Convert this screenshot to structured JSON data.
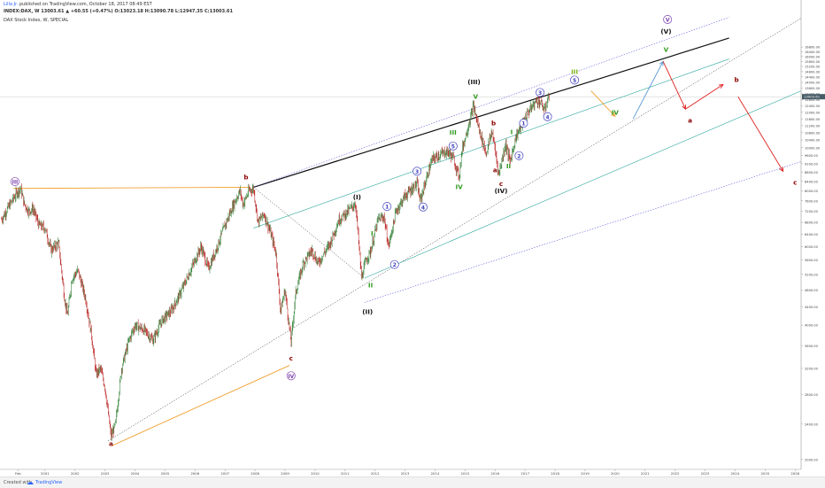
{
  "header": {
    "author": "Lilla Jr.",
    "published": "published on TradingView.com, October 18, 2017 08:49 EST",
    "symbol_line": "INDEX:DAX, W 13003.61 ▲ +60.55 (+0.47%) O:13023.18 H:13090.78 L:12947.35 C:13003.61",
    "study": "DAX Stock Index, W, SPECIAL"
  },
  "footer": {
    "created": "Created with",
    "brand": "TradingView"
  },
  "colors": {
    "price_up": "#2e7d32",
    "price_down": "#b71c1c",
    "trend_black": "#111111",
    "channel_blue": "#3b3bd6",
    "channel_green": "#26a69a",
    "orange": "#f0a030",
    "red": "#e02020",
    "light_blue": "#5b9bd5",
    "wave_green": "#2e9a1c",
    "wave_purple": "#7b3fb0",
    "wave_blue": "#4040c0",
    "wave_dark": "#8b0000"
  },
  "chart_data": {
    "type": "line",
    "title": "",
    "y_scale": "log",
    "ylim": [
      1900,
      20000
    ],
    "xlim": [
      1999.5,
      2026.2
    ],
    "x_ticks": [
      "Feb",
      "2001",
      "2002",
      "2003",
      "2004",
      "2005",
      "2006",
      "2007",
      "2008",
      "2009",
      "2010",
      "2011",
      "2012",
      "2013",
      "2014",
      "2015",
      "2016",
      "2017",
      "2018",
      "2019",
      "2020",
      "2021",
      "2022",
      "2023",
      "2024",
      "2025",
      "2026"
    ],
    "y_ticks": [
      2000,
      2400,
      2800,
      3200,
      3600,
      4000,
      4400,
      4800,
      5200,
      5600,
      6000,
      6400,
      6800,
      7200,
      7600,
      8000,
      8400,
      8800,
      9200,
      9600,
      10000,
      10400,
      10800,
      11200,
      11600,
      12000,
      12400,
      12800,
      13200,
      13600,
      14000,
      14400,
      14800,
      15200,
      15600,
      16000,
      16400,
      16800
    ],
    "last_price": "13003.61",
    "series": [
      {
        "kind": "price",
        "points": [
          [
            1999.55,
            6900
          ],
          [
            1999.8,
            7400
          ],
          [
            2000.1,
            8000
          ],
          [
            2000.2,
            8060
          ],
          [
            2000.3,
            7500
          ],
          [
            2000.45,
            7200
          ],
          [
            2000.6,
            7300
          ],
          [
            2000.8,
            6700
          ],
          [
            2001.0,
            6600
          ],
          [
            2001.2,
            5900
          ],
          [
            2001.45,
            6100
          ],
          [
            2001.65,
            4600
          ],
          [
            2001.75,
            4200
          ],
          [
            2001.9,
            5100
          ],
          [
            2002.1,
            5300
          ],
          [
            2002.35,
            4600
          ],
          [
            2002.55,
            3800
          ],
          [
            2002.7,
            3100
          ],
          [
            2002.85,
            3200
          ],
          [
            2003.0,
            2900
          ],
          [
            2003.2,
            2250
          ],
          [
            2003.35,
            2400
          ],
          [
            2003.55,
            3200
          ],
          [
            2003.8,
            3700
          ],
          [
            2004.0,
            4000
          ],
          [
            2004.3,
            3900
          ],
          [
            2004.6,
            3700
          ],
          [
            2004.9,
            4100
          ],
          [
            2005.2,
            4300
          ],
          [
            2005.5,
            4700
          ],
          [
            2005.9,
            5400
          ],
          [
            2006.2,
            6000
          ],
          [
            2006.45,
            5350
          ],
          [
            2006.7,
            5900
          ],
          [
            2007.0,
            6700
          ],
          [
            2007.3,
            7500
          ],
          [
            2007.5,
            8000
          ],
          [
            2007.6,
            7450
          ],
          [
            2007.8,
            8000
          ],
          [
            2007.95,
            8100
          ],
          [
            2008.1,
            6800
          ],
          [
            2008.3,
            7100
          ],
          [
            2008.5,
            6500
          ],
          [
            2008.7,
            5800
          ],
          [
            2008.85,
            4300
          ],
          [
            2009.0,
            4800
          ],
          [
            2009.2,
            3650
          ],
          [
            2009.35,
            4700
          ],
          [
            2009.6,
            5500
          ],
          [
            2009.9,
            5900
          ],
          [
            2010.1,
            5500
          ],
          [
            2010.5,
            6100
          ],
          [
            2010.8,
            6900
          ],
          [
            2011.1,
            7200
          ],
          [
            2011.35,
            7500
          ],
          [
            2011.55,
            5100
          ],
          [
            2011.7,
            5600
          ],
          [
            2011.85,
            5850
          ],
          [
            2012.1,
            6900
          ],
          [
            2012.3,
            7000
          ],
          [
            2012.45,
            6000
          ],
          [
            2012.7,
            7200
          ],
          [
            2013.0,
            7800
          ],
          [
            2013.4,
            8300
          ],
          [
            2013.5,
            7600
          ],
          [
            2013.9,
            9400
          ],
          [
            2014.1,
            9600
          ],
          [
            2014.4,
            9800
          ],
          [
            2014.6,
            9500
          ],
          [
            2014.8,
            8600
          ],
          [
            2014.9,
            9900
          ],
          [
            2015.2,
            11800
          ],
          [
            2015.28,
            12400
          ],
          [
            2015.45,
            11100
          ],
          [
            2015.7,
            9700
          ],
          [
            2015.9,
            10900
          ],
          [
            2016.05,
            9400
          ],
          [
            2016.12,
            8700
          ],
          [
            2016.35,
            10200
          ],
          [
            2016.5,
            9300
          ],
          [
            2016.7,
            10600
          ],
          [
            2016.95,
            11500
          ],
          [
            2017.1,
            12000
          ],
          [
            2017.4,
            12800
          ],
          [
            2017.55,
            12500
          ],
          [
            2017.65,
            12100
          ],
          [
            2017.75,
            12800
          ],
          [
            2017.8,
            13003.61
          ]
        ]
      },
      {
        "kind": "trendline",
        "color": "black",
        "points": [
          [
            2007.95,
            8150
          ],
          [
            2023.8,
            17600
          ]
        ]
      },
      {
        "kind": "channel",
        "color": "blue-dotted",
        "points": [
          [
            2007.95,
            8150
          ],
          [
            2023.8,
            19600
          ]
        ]
      },
      {
        "kind": "channel",
        "color": "green",
        "points": [
          [
            2007.95,
            6600
          ],
          [
            2023.8,
            15800
          ]
        ]
      },
      {
        "kind": "channel",
        "color": "black-dotted",
        "points": [
          [
            2003.1,
            2200
          ],
          [
            2026.2,
            19500
          ]
        ]
      },
      {
        "kind": "channel",
        "color": "green",
        "points": [
          [
            2011.65,
            5100
          ],
          [
            2026.2,
            13400
          ]
        ]
      },
      {
        "kind": "channel",
        "color": "blue-dotted",
        "points": [
          [
            2011.65,
            4500
          ],
          [
            2026.2,
            9300
          ]
        ]
      },
      {
        "kind": "line",
        "color": "black-dotted",
        "points": [
          [
            2007.95,
            8150
          ],
          [
            2011.65,
            5100
          ]
        ]
      },
      {
        "kind": "line",
        "color": "orange",
        "points": [
          [
            1999.95,
            8100
          ],
          [
            2007.85,
            8150
          ]
        ]
      },
      {
        "kind": "line",
        "color": "orange",
        "points": [
          [
            2003.25,
            2150
          ],
          [
            2009.15,
            3250
          ]
        ]
      },
      {
        "kind": "arrow",
        "color": "orange",
        "points": [
          [
            2019.2,
            13400
          ],
          [
            2020.0,
            11750
          ]
        ]
      },
      {
        "kind": "arrow",
        "color": "light-blue",
        "points": [
          [
            2020.6,
            11600
          ],
          [
            2021.6,
            15600
          ]
        ]
      },
      {
        "kind": "arrow",
        "color": "red",
        "points": [
          [
            2021.6,
            15600
          ],
          [
            2022.35,
            12200
          ]
        ]
      },
      {
        "kind": "arrow",
        "color": "red",
        "points": [
          [
            2022.35,
            12200
          ],
          [
            2023.6,
            13850
          ]
        ]
      },
      {
        "kind": "arrow",
        "color": "red",
        "points": [
          [
            2024.1,
            13000
          ],
          [
            2025.6,
            8850
          ]
        ]
      }
    ],
    "annotations": [
      {
        "text": "III",
        "circled": true,
        "color": "purple",
        "x": 2000.0,
        "y": 8390
      },
      {
        "text": "a",
        "color": "dark-red",
        "x": 2003.2,
        "y": 2170
      },
      {
        "text": "b",
        "color": "dark-red",
        "x": 2007.7,
        "y": 8590
      },
      {
        "text": "c",
        "color": "dark-red",
        "x": 2009.2,
        "y": 3370
      },
      {
        "text": "IV",
        "circled": true,
        "color": "purple",
        "x": 2009.2,
        "y": 3080
      },
      {
        "text": "(I)",
        "color": "black",
        "x": 2011.4,
        "y": 7750
      },
      {
        "text": "I",
        "color": "green",
        "x": 2011.9,
        "y": 6430
      },
      {
        "text": "II",
        "color": "green",
        "x": 2011.85,
        "y": 4920
      },
      {
        "text": "(II)",
        "color": "black",
        "x": 2011.75,
        "y": 4290
      },
      {
        "text": "1",
        "circled": true,
        "color": "blue",
        "x": 2012.4,
        "y": 7380
      },
      {
        "text": "2",
        "circled": true,
        "color": "blue",
        "x": 2012.65,
        "y": 5470
      },
      {
        "text": "3",
        "circled": true,
        "color": "blue",
        "x": 2013.4,
        "y": 8850
      },
      {
        "text": "4",
        "circled": true,
        "color": "blue",
        "x": 2013.6,
        "y": 7360
      },
      {
        "text": "5",
        "circled": true,
        "color": "blue",
        "x": 2014.6,
        "y": 10080
      },
      {
        "text": "III",
        "color": "green",
        "x": 2014.6,
        "y": 10830
      },
      {
        "text": "IV",
        "color": "green",
        "x": 2014.8,
        "y": 8170
      },
      {
        "text": "(III)",
        "color": "black",
        "x": 2015.3,
        "y": 14040
      },
      {
        "text": "V",
        "color": "green",
        "x": 2015.35,
        "y": 13030
      },
      {
        "text": "b",
        "color": "dark-red",
        "x": 2015.95,
        "y": 11360
      },
      {
        "text": "a",
        "color": "dark-red",
        "x": 2016.0,
        "y": 8910
      },
      {
        "text": "c",
        "color": "dark-red",
        "x": 2016.2,
        "y": 8300
      },
      {
        "text": "(IV)",
        "color": "black",
        "x": 2016.2,
        "y": 8000
      },
      {
        "text": "I",
        "color": "green",
        "x": 2016.55,
        "y": 10850
      },
      {
        "text": "II",
        "color": "green",
        "x": 2016.45,
        "y": 9090
      },
      {
        "text": "1",
        "circled": true,
        "color": "blue",
        "x": 2016.95,
        "y": 11340
      },
      {
        "text": "2",
        "circled": true,
        "color": "blue",
        "x": 2016.8,
        "y": 9590
      },
      {
        "text": "3",
        "circled": true,
        "color": "blue",
        "x": 2017.5,
        "y": 13290
      },
      {
        "text": "4",
        "circled": true,
        "color": "blue",
        "x": 2017.75,
        "y": 11730
      },
      {
        "text": "III",
        "color": "yellow-green",
        "x": 2018.65,
        "y": 14810
      },
      {
        "text": "5",
        "circled": true,
        "color": "blue",
        "x": 2018.65,
        "y": 14170
      },
      {
        "text": "IV",
        "color": "green",
        "x": 2020.0,
        "y": 11990
      },
      {
        "text": "V",
        "color": "green",
        "x": 2021.7,
        "y": 16580
      },
      {
        "text": "(V)",
        "color": "black",
        "x": 2021.7,
        "y": 18230
      },
      {
        "text": "V",
        "circled": true,
        "color": "purple",
        "x": 2021.75,
        "y": 19370
      },
      {
        "text": "a",
        "color": "dark-red",
        "x": 2022.5,
        "y": 11520
      },
      {
        "text": "b",
        "color": "dark-red",
        "x": 2024.05,
        "y": 14200
      },
      {
        "text": "c",
        "color": "dark-red",
        "x": 2026.0,
        "y": 8360
      }
    ]
  }
}
